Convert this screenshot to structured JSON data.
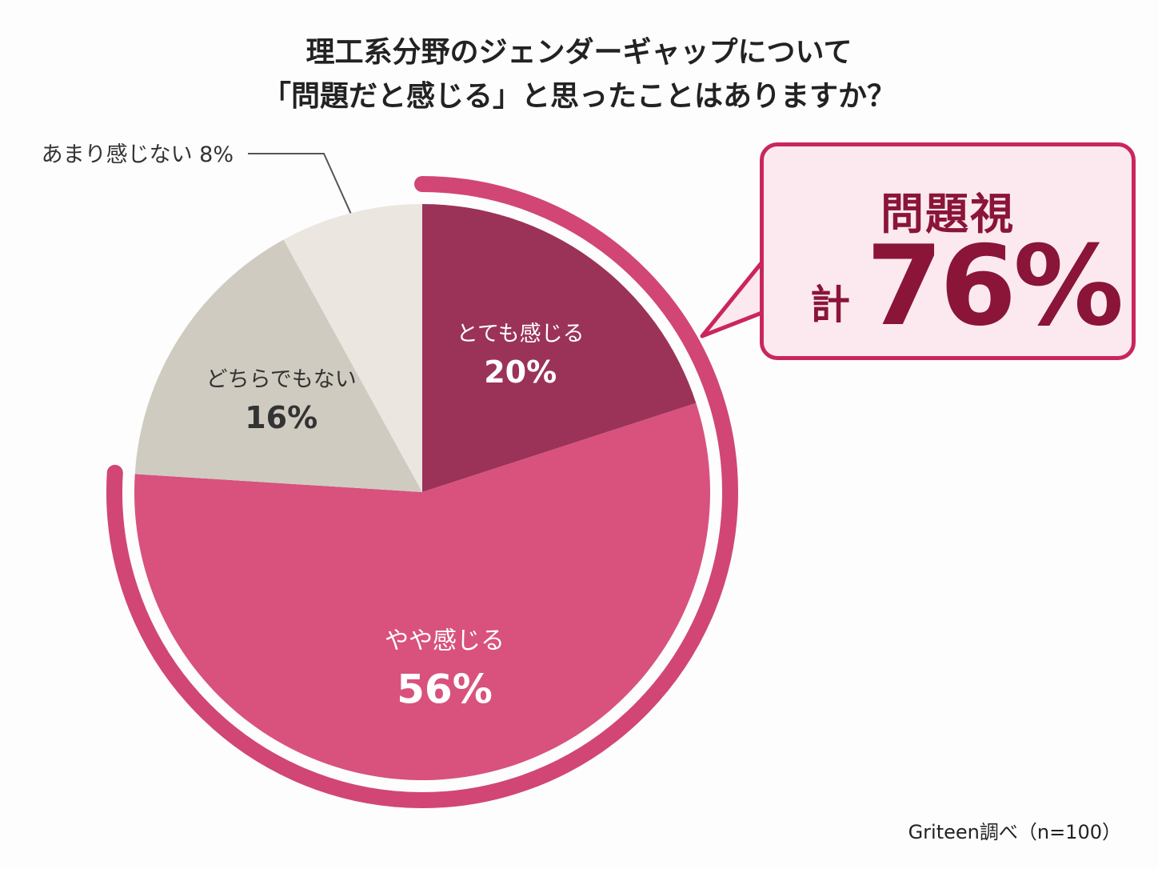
{
  "title": {
    "line1": "理工系分野のジェンダーギャップについて",
    "line2": "「問題だと感じる」と思ったことはありますか？"
  },
  "callout": {
    "label": "問題視",
    "prefix": "計",
    "value": "76%"
  },
  "source": "Griteen調べ（n=100）",
  "colors": {
    "very": "#9b3358",
    "somewhat": "#d8527d",
    "neither": "#cfcbc1",
    "not_much": "#ebe6df",
    "accent": "#c9265c",
    "callout_bg": "#fbe9ef",
    "callout_text": "#8a1538"
  },
  "chart_data": {
    "type": "pie",
    "title": "理工系分野のジェンダーギャップについて「問題だと感じる」と思ったことはありますか？",
    "slices": [
      {
        "label": "とても感じる",
        "value": 20,
        "display": "20%",
        "color": "#9b3358",
        "text_color": "#ffffff",
        "placement": "inside"
      },
      {
        "label": "やや感じる",
        "value": 56,
        "display": "56%",
        "color": "#d8527d",
        "text_color": "#ffffff",
        "placement": "inside"
      },
      {
        "label": "どちらでもない",
        "value": 16,
        "display": "16%",
        "color": "#cfcbc1",
        "text_color": "#333333",
        "placement": "inside"
      },
      {
        "label": "あまり感じない",
        "value": 8,
        "display": "8%",
        "color": "#ebe6df",
        "text_color": "#333333",
        "placement": "outside"
      }
    ],
    "highlight_total": {
      "label": "問題視",
      "value": 76,
      "includes": [
        "とても感じる",
        "やや感じる"
      ]
    }
  }
}
